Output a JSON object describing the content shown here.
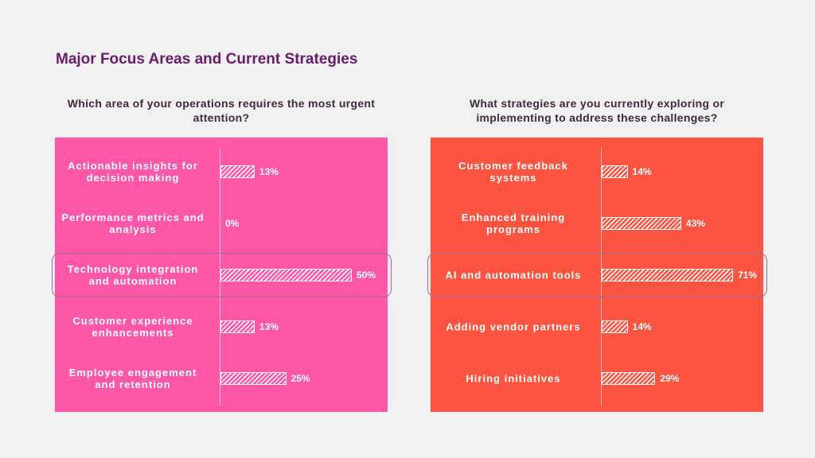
{
  "title": "Major Focus Areas and Current Strategies",
  "chart_data": [
    {
      "type": "bar",
      "title": "Which area of your operations requires the most urgent attention?",
      "categories": [
        "Actionable insights for decision making",
        "Performance metrics and analysis",
        "Technology integration and automation",
        "Customer experience enhancements",
        "Employee engagement and retention"
      ],
      "values": [
        13,
        0,
        50,
        13,
        25
      ],
      "value_labels": [
        "13%",
        "0%",
        "50%",
        "13%",
        "25%"
      ],
      "color": "#ff57a8",
      "highlight": 2
    },
    {
      "type": "bar",
      "title": "What strategies are you currently exploring or implementing to address these challenges?",
      "categories": [
        "Customer feedback systems",
        "Enhanced training programs",
        "AI and automation tools",
        "Adding vendor partners",
        "Hiring initiatives"
      ],
      "values": [
        14,
        43,
        71,
        14,
        29
      ],
      "value_labels": [
        "14%",
        "43%",
        "71%",
        "14%",
        "29%"
      ],
      "color": "#fc5441",
      "highlight": 2
    }
  ]
}
